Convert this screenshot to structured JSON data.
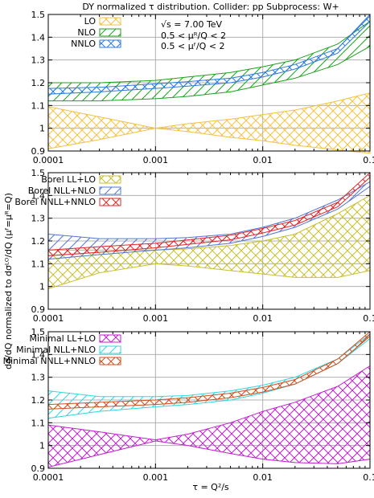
{
  "figure_title": "DY normalized τ distribution.   Collider: pp   Subprocess: W+",
  "ylabel": "dσ/dQ  normalized to  dσᴸᴼ/dQ (μᶠ=μᴿ=Q)",
  "xlabel": "τ = Q²/s",
  "annotations": [
    "√s = 7.00 TeV",
    "0.5 < μᴿ/Q < 2",
    "0.5 < μᶠ/Q < 2"
  ],
  "colors": {
    "yellow": "#f5c242",
    "green": "#1fa01f",
    "blue": "#2f7be0",
    "olive": "#c8c030",
    "slate": "#5577d0",
    "red": "#e02828",
    "magenta": "#c020d0",
    "cyan": "#30d8e0",
    "orange": "#d05020"
  },
  "chart_data": [
    {
      "type": "area",
      "xscale": "log",
      "xlim": [
        0.0001,
        0.1
      ],
      "ylim": [
        0.9,
        1.5
      ],
      "grid": true,
      "legend_position": "top-left",
      "x_ticks": [
        "0.0001",
        "0.001",
        "0.01",
        "0.1"
      ],
      "y_ticks": [
        "0.9",
        "1",
        "1.1",
        "1.2",
        "1.3",
        "1.4",
        "1.5"
      ],
      "x": [
        0.0001,
        0.0003,
        0.001,
        0.002,
        0.005,
        0.01,
        0.02,
        0.05,
        0.1
      ],
      "series": [
        {
          "name": "LO",
          "color": "#f5c242",
          "hatch": "cross",
          "upper": [
            1.095,
            1.05,
            1.0,
            1.02,
            1.04,
            1.06,
            1.08,
            1.12,
            1.155
          ],
          "lower": [
            0.91,
            0.95,
            1.0,
            0.985,
            0.96,
            0.945,
            0.925,
            0.905,
            0.89
          ]
        },
        {
          "name": "NLO",
          "color": "#1fa01f",
          "hatch": "diagonal",
          "upper": [
            1.2,
            1.2,
            1.21,
            1.225,
            1.245,
            1.27,
            1.3,
            1.37,
            1.47
          ],
          "lower": [
            1.12,
            1.12,
            1.13,
            1.14,
            1.16,
            1.19,
            1.22,
            1.28,
            1.36
          ]
        },
        {
          "name": "NNLO",
          "color": "#2f7be0",
          "hatch": "cross",
          "upper": [
            1.175,
            1.18,
            1.195,
            1.205,
            1.22,
            1.245,
            1.28,
            1.35,
            1.5
          ],
          "lower": [
            1.15,
            1.16,
            1.175,
            1.185,
            1.2,
            1.225,
            1.26,
            1.33,
            1.47
          ]
        }
      ]
    },
    {
      "type": "area",
      "xscale": "log",
      "xlim": [
        0.0001,
        0.1
      ],
      "ylim": [
        0.9,
        1.5
      ],
      "grid": true,
      "legend_position": "top-left",
      "x_ticks": [
        "0.0001",
        "0.001",
        "0.01",
        "0.1"
      ],
      "y_ticks": [
        "0.9",
        "1",
        "1.1",
        "1.2",
        "1.3",
        "1.4",
        "1.5"
      ],
      "x": [
        0.0001,
        0.0003,
        0.001,
        0.002,
        0.005,
        0.01,
        0.02,
        0.05,
        0.1
      ],
      "series": [
        {
          "name": "Borel LL+LO",
          "color": "#c8c030",
          "hatch": "cross",
          "upper": [
            1.16,
            1.16,
            1.16,
            1.165,
            1.18,
            1.2,
            1.23,
            1.32,
            1.4
          ],
          "lower": [
            0.99,
            1.06,
            1.1,
            1.09,
            1.07,
            1.055,
            1.04,
            1.04,
            1.07
          ]
        },
        {
          "name": "Borel NLL+NLO",
          "color": "#5577d0",
          "hatch": "diagonal",
          "upper": [
            1.23,
            1.21,
            1.21,
            1.215,
            1.23,
            1.26,
            1.3,
            1.38,
            1.46
          ],
          "lower": [
            1.12,
            1.14,
            1.16,
            1.17,
            1.19,
            1.22,
            1.26,
            1.34,
            1.44
          ]
        },
        {
          "name": "Borel NNLL+NNLO",
          "color": "#e02828",
          "hatch": "cross",
          "upper": [
            1.16,
            1.175,
            1.19,
            1.205,
            1.225,
            1.255,
            1.29,
            1.37,
            1.5
          ],
          "lower": [
            1.135,
            1.15,
            1.17,
            1.185,
            1.205,
            1.235,
            1.27,
            1.35,
            1.48
          ]
        }
      ]
    },
    {
      "type": "area",
      "xscale": "log",
      "xlim": [
        0.0001,
        0.1
      ],
      "ylim": [
        0.9,
        1.5
      ],
      "grid": true,
      "legend_position": "top-left",
      "x_ticks": [
        "0.0001",
        "0.001",
        "0.01",
        "0.1"
      ],
      "y_ticks": [
        "0.9",
        "1",
        "1.1",
        "1.2",
        "1.3",
        "1.4",
        "1.5"
      ],
      "x": [
        0.0001,
        0.0003,
        0.001,
        0.002,
        0.005,
        0.01,
        0.02,
        0.05,
        0.1
      ],
      "series": [
        {
          "name": "Minimal LL+LO",
          "color": "#c020d0",
          "hatch": "cross",
          "upper": [
            1.09,
            1.06,
            1.025,
            1.05,
            1.1,
            1.15,
            1.19,
            1.26,
            1.35
          ],
          "lower": [
            0.905,
            0.96,
            1.02,
            1.0,
            0.965,
            0.94,
            0.925,
            0.92,
            0.94
          ]
        },
        {
          "name": "Minimal NLL+NLO",
          "color": "#30d8e0",
          "hatch": "diagonal",
          "upper": [
            1.24,
            1.215,
            1.215,
            1.22,
            1.24,
            1.265,
            1.3,
            1.38,
            1.49
          ],
          "lower": [
            1.12,
            1.15,
            1.17,
            1.18,
            1.2,
            1.23,
            1.27,
            1.36,
            1.47
          ]
        },
        {
          "name": "Minimal NNLL+NNLO",
          "color": "#d05020",
          "hatch": "cross",
          "upper": [
            1.18,
            1.19,
            1.2,
            1.21,
            1.23,
            1.255,
            1.29,
            1.38,
            1.5
          ],
          "lower": [
            1.16,
            1.17,
            1.18,
            1.19,
            1.21,
            1.235,
            1.27,
            1.36,
            1.48
          ]
        }
      ]
    }
  ]
}
